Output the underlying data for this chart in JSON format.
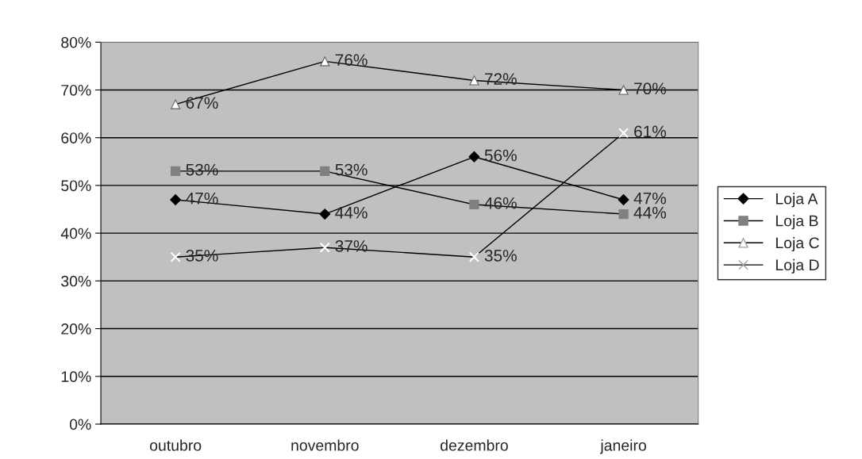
{
  "chart_data": {
    "type": "line",
    "categories": [
      "outubro",
      "novembro",
      "dezembro",
      "janeiro"
    ],
    "series": [
      {
        "name": "Loja A",
        "color": "#000000",
        "marker": "diamond",
        "values": [
          47,
          44,
          56,
          47
        ],
        "value_labels": [
          "47%",
          "44%",
          "56%",
          "47%"
        ]
      },
      {
        "name": "Loja B",
        "color": "#808080",
        "marker": "square",
        "values": [
          53,
          53,
          46,
          44
        ],
        "value_labels": [
          "53%",
          "53%",
          "46%",
          "44%"
        ]
      },
      {
        "name": "Loja C",
        "color": "#ffffff",
        "marker": "triangle",
        "values": [
          67,
          76,
          72,
          70
        ],
        "value_labels": [
          "67%",
          "76%",
          "72%",
          "70%"
        ]
      },
      {
        "name": "Loja D",
        "color": "#ffffff",
        "marker": "cross",
        "values": [
          35,
          37,
          35,
          61
        ],
        "value_labels": [
          "35%",
          "37%",
          "35%",
          "61%"
        ]
      }
    ],
    "ylim": [
      0,
      80
    ],
    "yticks": [
      {
        "value": 0,
        "label": "0%"
      },
      {
        "value": 10,
        "label": "10%"
      },
      {
        "value": 20,
        "label": "20%"
      },
      {
        "value": 30,
        "label": "30%"
      },
      {
        "value": 40,
        "label": "40%"
      },
      {
        "value": 50,
        "label": "50%"
      },
      {
        "value": 60,
        "label": "60%"
      },
      {
        "value": 70,
        "label": "70%"
      },
      {
        "value": 80,
        "label": "80%"
      }
    ],
    "grid": "y",
    "legend": "right",
    "line_style": "solid"
  }
}
